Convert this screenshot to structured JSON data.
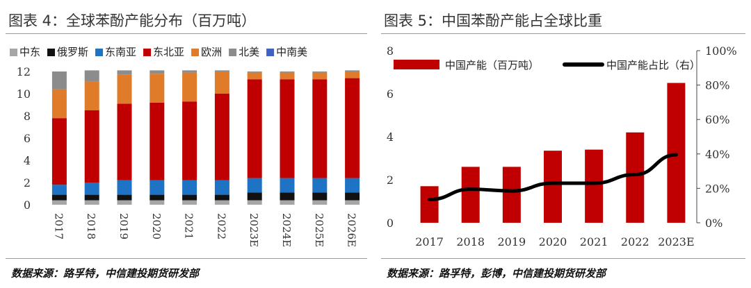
{
  "left": {
    "title": "图表 4：全球苯酚产能分布（百万吨）",
    "source": "数据来源：路孚特，中信建投期货研发部",
    "chart_data": {
      "type": "bar",
      "stacked": true,
      "categories": [
        "2017",
        "2018",
        "2019",
        "2020",
        "2021",
        "2022",
        "2023E",
        "2024E",
        "2025E",
        "2026E"
      ],
      "ylim": [
        0,
        12
      ],
      "yticks": [
        0,
        2,
        4,
        6,
        8,
        10,
        12
      ],
      "legend_position": "top",
      "series": [
        {
          "name": "中东",
          "color": "#a6a6a6",
          "values": [
            0.4,
            0.4,
            0.4,
            0.4,
            0.4,
            0.4,
            0.4,
            0.4,
            0.4,
            0.4
          ]
        },
        {
          "name": "俄罗斯",
          "color": "#111111",
          "values": [
            0.5,
            0.5,
            0.5,
            0.5,
            0.5,
            0.5,
            0.7,
            0.7,
            0.7,
            0.7
          ]
        },
        {
          "name": "东南亚",
          "color": "#1f73c4",
          "values": [
            0.9,
            1.1,
            1.3,
            1.3,
            1.3,
            1.3,
            1.3,
            1.3,
            1.3,
            1.3
          ]
        },
        {
          "name": "东北亚",
          "color": "#c00000",
          "values": [
            6.0,
            6.5,
            6.9,
            7.0,
            7.1,
            7.8,
            8.9,
            8.9,
            8.9,
            9.0
          ]
        },
        {
          "name": "欧洲",
          "color": "#e07b2a",
          "values": [
            2.6,
            2.6,
            2.6,
            2.6,
            2.6,
            2.0,
            0.6,
            0.6,
            0.6,
            0.6
          ]
        },
        {
          "name": "北美",
          "color": "#8c8c8c",
          "values": [
            1.6,
            1.0,
            0.4,
            0.3,
            0.2,
            0.1,
            0.1,
            0.1,
            0.1,
            0.1
          ]
        },
        {
          "name": "中南美",
          "color": "#3d62c4",
          "values": [
            0.0,
            0.0,
            0.0,
            0.0,
            0.0,
            0.0,
            0.0,
            0.0,
            0.0,
            0.0
          ]
        }
      ]
    }
  },
  "right": {
    "title": "图表 5：中国苯酚产能占全球比重",
    "source": "数据来源：路孚特，彭博，中信建投期货研发部",
    "chart_data": {
      "type": "bar",
      "categories": [
        "2017",
        "2018",
        "2019",
        "2020",
        "2021",
        "2022",
        "2023E"
      ],
      "ylim": [
        0,
        8
      ],
      "yticks": [
        0,
        2,
        4,
        6,
        8
      ],
      "y2lim": [
        0,
        100
      ],
      "y2ticks": [
        "0%",
        "20%",
        "40%",
        "60%",
        "80%",
        "100%"
      ],
      "legend_position": "top",
      "series": [
        {
          "name": "中国产能（百万吨）",
          "type": "bar",
          "axis": "left",
          "color": "#c00000",
          "values": [
            1.7,
            2.6,
            2.6,
            3.35,
            3.4,
            4.2,
            6.5
          ]
        },
        {
          "name": "中国产能占比（右）",
          "type": "line",
          "axis": "right",
          "color": "#000000",
          "values": [
            13.5,
            19.5,
            18.5,
            23,
            23,
            28,
            39.5
          ]
        }
      ]
    }
  }
}
